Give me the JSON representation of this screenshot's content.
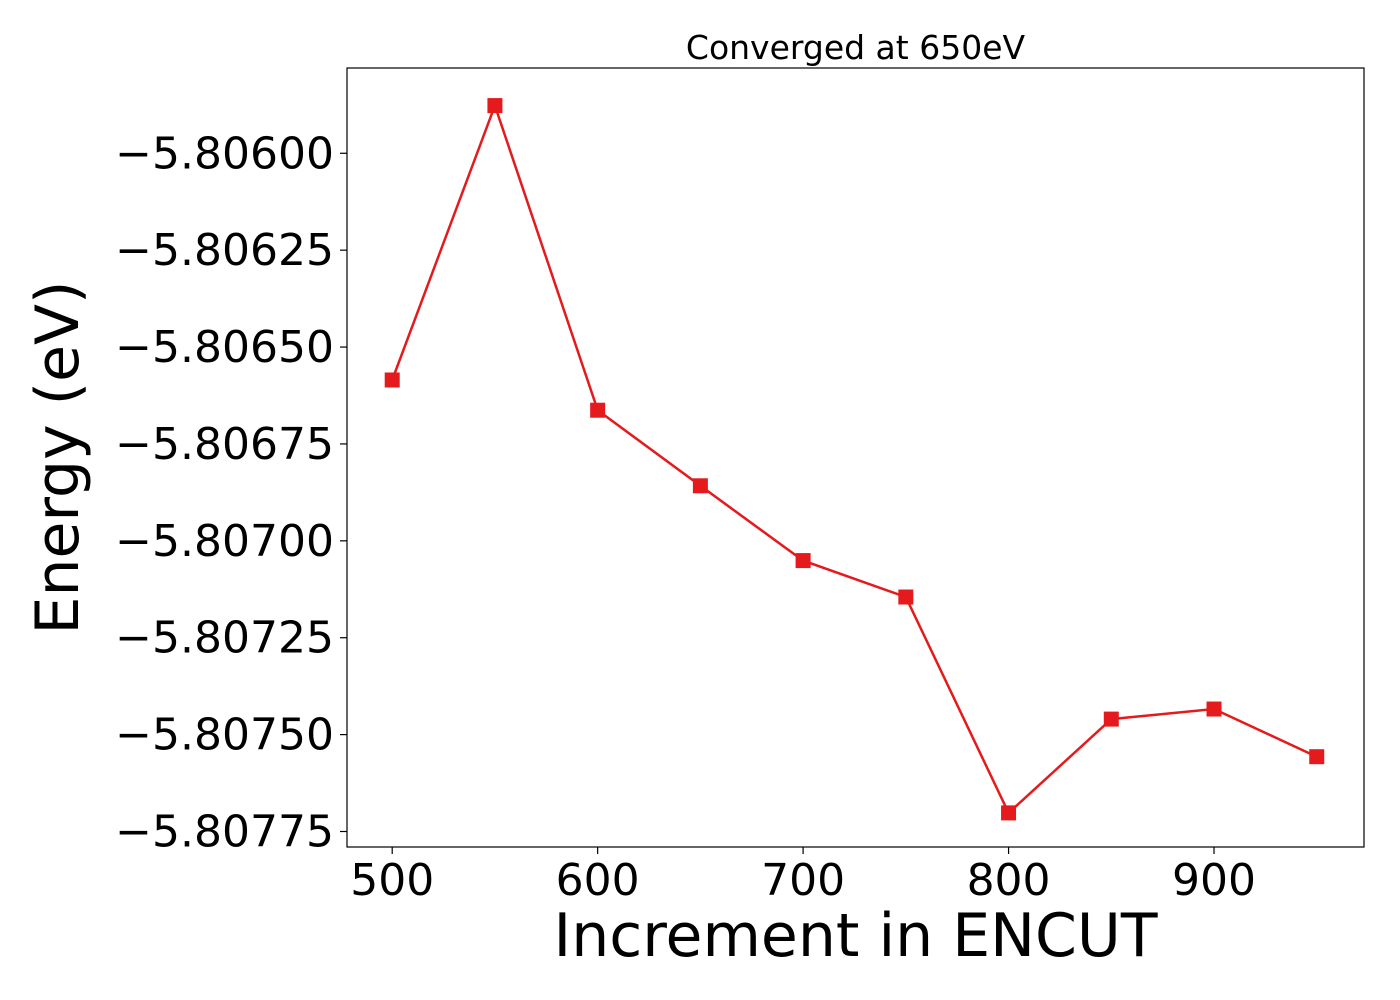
{
  "chart_data": {
    "type": "line",
    "title": "Converged at 650eV",
    "xlabel": "Increment in ENCUT",
    "ylabel": "Energy (eV)",
    "xlim": [
      478,
      973
    ],
    "ylim": [
      -5.80779,
      -5.80578
    ],
    "xticks": [
      500,
      600,
      700,
      800,
      900
    ],
    "xtick_labels": [
      "500",
      "600",
      "700",
      "800",
      "900"
    ],
    "yticks": [
      -5.806,
      -5.80625,
      -5.8065,
      -5.80675,
      -5.807,
      -5.80725,
      -5.8075,
      -5.80775
    ],
    "ytick_labels": [
      "−5.80600",
      "−5.80625",
      "−5.80650",
      "−5.80675",
      "−5.80700",
      "−5.80725",
      "−5.80750",
      "−5.80775"
    ],
    "grid": false,
    "series": [
      {
        "color": "#e41a1c",
        "marker": "square",
        "x": [
          500,
          550,
          600,
          650,
          700,
          750,
          800,
          850,
          900,
          950
        ],
        "y": [
          -5.806585,
          -5.805877,
          -5.806663,
          -5.806858,
          -5.807051,
          -5.807145,
          -5.807702,
          -5.80746,
          -5.807434,
          -5.807557
        ]
      }
    ]
  }
}
